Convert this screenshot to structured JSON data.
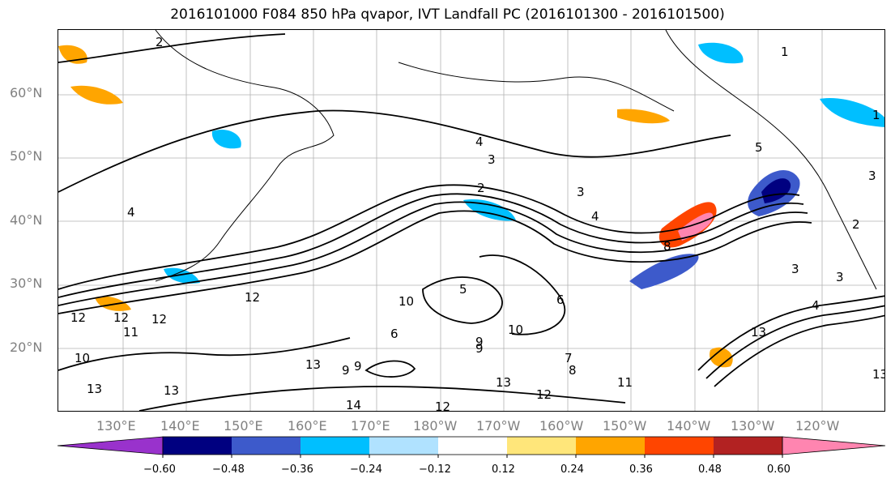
{
  "title": "2016101000 F084 850 hPa qvapor, IVT Landfall PC (2016101300 - 2016101500)",
  "map": {
    "lat_labels": [
      "60°N",
      "50°N",
      "40°N",
      "30°N",
      "20°N"
    ],
    "lon_labels": [
      "130°E",
      "140°E",
      "150°E",
      "160°E",
      "170°E",
      "180°W",
      "170°W",
      "160°W",
      "150°W",
      "140°W",
      "130°W",
      "120°W"
    ],
    "contour_labels": [
      "2",
      "1",
      "3",
      "4",
      "2",
      "3",
      "4",
      "5",
      "12",
      "12",
      "12",
      "4",
      "5",
      "6",
      "10",
      "9",
      "6",
      "8",
      "7",
      "9",
      "10",
      "13",
      "12",
      "11",
      "10",
      "13",
      "14",
      "13",
      "9",
      "13",
      "11",
      "13",
      "12",
      "9",
      "12",
      "13",
      "3",
      "3",
      "4",
      "3",
      "2",
      "1",
      "8"
    ],
    "grid_color": "#808080",
    "contour_color": "#000000"
  },
  "colorbar": {
    "tick_labels": [
      "−0.60",
      "−0.48",
      "−0.36",
      "−0.24",
      "−0.12",
      "0.12",
      "0.24",
      "0.36",
      "0.48",
      "0.60"
    ],
    "colors": [
      "#9932cc",
      "#000080",
      "#3d5acb",
      "#00bfff",
      "#b0e2ff",
      "#ffffff",
      "#ffe67a",
      "#ffa500",
      "#ff4500",
      "#b22222",
      "#ff85b0"
    ]
  }
}
